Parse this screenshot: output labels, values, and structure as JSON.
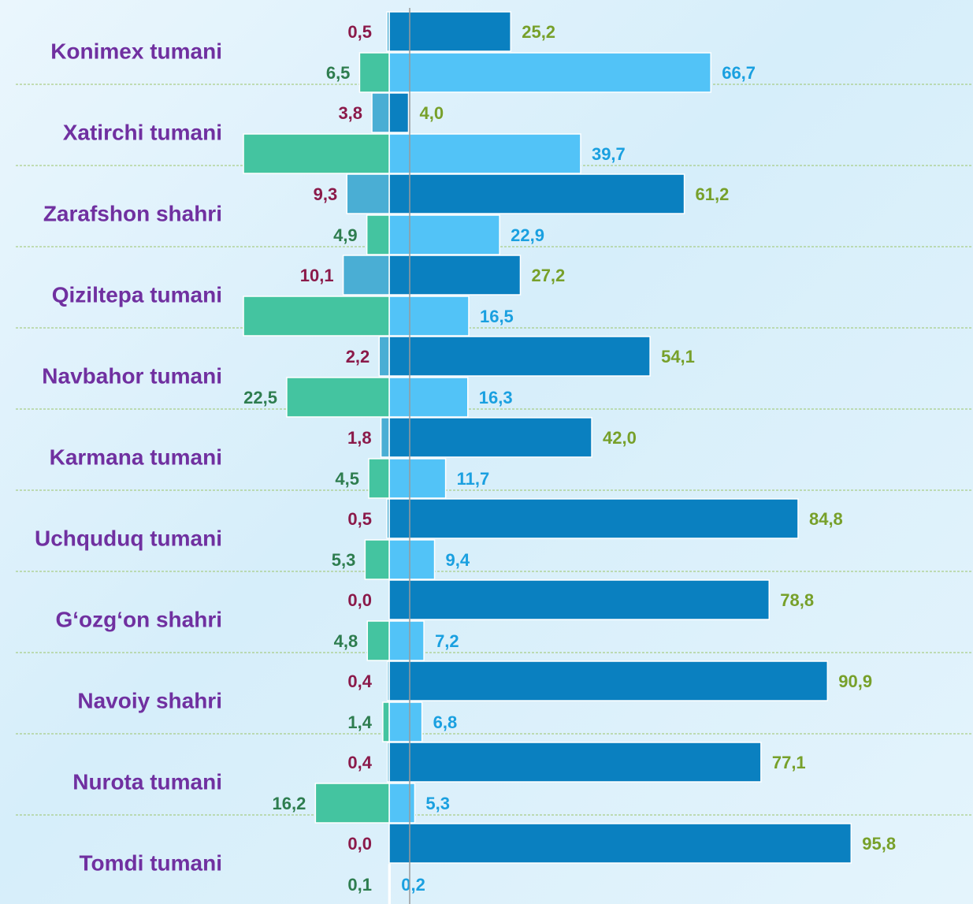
{
  "chart_data": {
    "type": "diverging-bar",
    "categories": [
      "Konimex tumani",
      "Xatirchi tumani",
      "Zarafshon shahri",
      "Qiziltepa tumani",
      "Navbahor tumani",
      "Karmana tumani",
      "Uchquduq tumani",
      "G‘ozg‘on shahri",
      "Navoiy shahri",
      "Nurota tumani",
      "Tomdi tumani"
    ],
    "series": [
      {
        "color": "#0a80c0",
        "label_color": "#77a02a",
        "side": "right",
        "row": 0,
        "values": [
          25.2,
          4.0,
          61.2,
          27.2,
          54.1,
          42.0,
          84.8,
          78.8,
          90.9,
          77.1,
          95.8
        ],
        "value_labels": [
          "25,2",
          "4,0",
          "61,2",
          "27,2",
          "54,1",
          "42,0",
          "84,8",
          "78,8",
          "90,9",
          "77,1",
          "95,8"
        ]
      },
      {
        "color": "#52c3f7",
        "label_color": "#1aa0e0",
        "side": "right",
        "row": 1,
        "values": [
          66.7,
          39.7,
          22.9,
          16.5,
          16.3,
          11.7,
          9.4,
          7.2,
          6.8,
          5.3,
          0.2
        ],
        "value_labels": [
          "66,7",
          "39,7",
          "22,9",
          "16,5",
          "16,3",
          "11,7",
          "9,4",
          "7,2",
          "6,8",
          "5,3",
          "0,2"
        ]
      },
      {
        "color": "#4aaed4",
        "label_color": "#8b1a4a",
        "side": "left",
        "row": 0,
        "values": [
          0.5,
          3.8,
          9.3,
          10.1,
          2.2,
          1.8,
          0.5,
          0.0,
          0.4,
          0.4,
          0.0
        ],
        "value_labels": [
          "0,5",
          "3,8",
          "9,3",
          "10,1",
          "2,2",
          "1,8",
          "0,5",
          "0,0",
          "0,4",
          "0,4",
          "0,0"
        ]
      },
      {
        "color": "#44c4a0",
        "label_color": "#2e7d4f",
        "side": "left",
        "row": 1,
        "values": [
          6.5,
          32,
          4.9,
          32,
          22.5,
          4.5,
          5.3,
          4.8,
          1.4,
          16.2,
          0.1
        ],
        "value_labels": [
          "6,5",
          null,
          "4,9",
          null,
          "22,5",
          "4,5",
          "5,3",
          "4,8",
          "1,4",
          "16,2",
          "0,1"
        ]
      }
    ],
    "grid": true
  }
}
